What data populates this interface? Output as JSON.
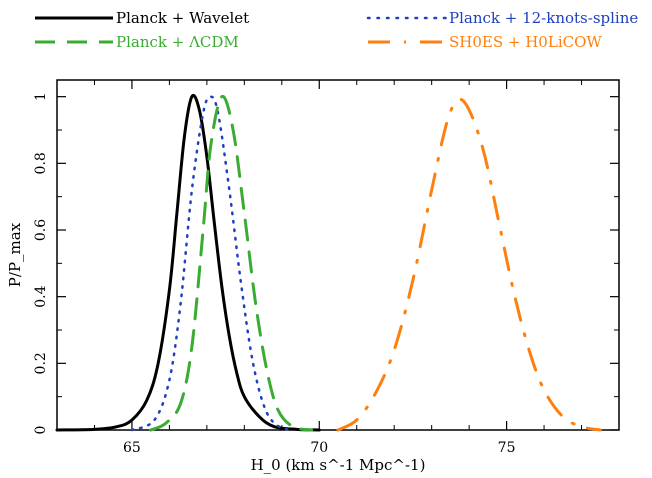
{
  "chart_data": {
    "type": "line",
    "xlabel": "H_0 (km s^-1 Mpc^-1)",
    "ylabel": "P/P_max",
    "xlim": [
      63,
      78
    ],
    "ylim": [
      0,
      1.05
    ],
    "x_ticks": [
      65,
      70,
      75
    ],
    "x_tick_labels": [
      "65",
      "70",
      "75"
    ],
    "y_ticks": [
      0,
      0.2,
      0.4,
      0.6,
      0.8,
      1
    ],
    "y_tick_labels": [
      "0",
      "0.2",
      "0.4",
      "0.6",
      "0.8",
      "1"
    ],
    "legend_position": "top",
    "series": [
      {
        "name": "Planck + Wavelet",
        "color": "#000000",
        "style": "solid",
        "points": [
          [
            63.0,
            0.0
          ],
          [
            64.0,
            0.002
          ],
          [
            64.6,
            0.01
          ],
          [
            65.0,
            0.03
          ],
          [
            65.4,
            0.09
          ],
          [
            65.7,
            0.2
          ],
          [
            66.0,
            0.42
          ],
          [
            66.2,
            0.65
          ],
          [
            66.4,
            0.88
          ],
          [
            66.6,
            1.0
          ],
          [
            66.8,
            0.96
          ],
          [
            67.0,
            0.82
          ],
          [
            67.2,
            0.62
          ],
          [
            67.4,
            0.43
          ],
          [
            67.6,
            0.28
          ],
          [
            67.8,
            0.17
          ],
          [
            68.0,
            0.1
          ],
          [
            68.4,
            0.04
          ],
          [
            68.8,
            0.01
          ],
          [
            69.4,
            0.002
          ],
          [
            70.0,
            0.0
          ]
        ]
      },
      {
        "name": "Planck + 12-knots-spline",
        "color": "#1f3fbf",
        "style": "dotted",
        "points": [
          [
            65.0,
            0.0
          ],
          [
            65.6,
            0.03
          ],
          [
            66.0,
            0.15
          ],
          [
            66.3,
            0.38
          ],
          [
            66.6,
            0.72
          ],
          [
            66.9,
            0.95
          ],
          [
            67.1,
            1.0
          ],
          [
            67.3,
            0.95
          ],
          [
            67.6,
            0.72
          ],
          [
            67.9,
            0.45
          ],
          [
            68.2,
            0.22
          ],
          [
            68.5,
            0.08
          ],
          [
            68.8,
            0.02
          ],
          [
            69.2,
            0.0
          ]
        ]
      },
      {
        "name": "Planck + ΛCDM",
        "color": "#3aac33",
        "style": "longdash",
        "points": [
          [
            65.5,
            0.0
          ],
          [
            65.9,
            0.02
          ],
          [
            66.3,
            0.08
          ],
          [
            66.6,
            0.25
          ],
          [
            66.9,
            0.6
          ],
          [
            67.1,
            0.85
          ],
          [
            67.4,
            1.0
          ],
          [
            67.7,
            0.9
          ],
          [
            68.0,
            0.65
          ],
          [
            68.3,
            0.38
          ],
          [
            68.6,
            0.18
          ],
          [
            68.9,
            0.06
          ],
          [
            69.3,
            0.01
          ],
          [
            69.8,
            0.0
          ]
        ]
      },
      {
        "name": "SH0ES + H0LiCOW",
        "color": "#ff7f0e",
        "style": "dashdot",
        "points": [
          [
            70.5,
            0.0
          ],
          [
            71.0,
            0.03
          ],
          [
            71.5,
            0.11
          ],
          [
            72.0,
            0.24
          ],
          [
            72.5,
            0.45
          ],
          [
            73.0,
            0.72
          ],
          [
            73.4,
            0.92
          ],
          [
            73.7,
            0.99
          ],
          [
            74.0,
            0.96
          ],
          [
            74.4,
            0.83
          ],
          [
            74.8,
            0.62
          ],
          [
            75.2,
            0.41
          ],
          [
            75.6,
            0.24
          ],
          [
            76.0,
            0.12
          ],
          [
            76.5,
            0.04
          ],
          [
            77.0,
            0.01
          ],
          [
            77.5,
            0.0
          ]
        ]
      }
    ]
  }
}
